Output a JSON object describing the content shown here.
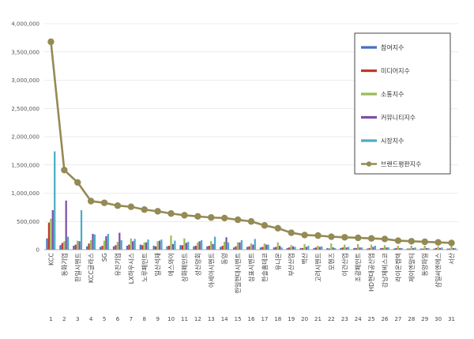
{
  "chart_data": {
    "type": "bar",
    "title": "",
    "xlabel": "",
    "ylabel": "",
    "ylim": [
      0,
      4000000
    ],
    "yticks": [
      "0",
      "500,000",
      "1,000,000",
      "1,500,000",
      "2,000,000",
      "2,500,000",
      "3,000,000",
      "3,500,000",
      "4,000,000"
    ],
    "ytick_values": [
      0,
      500000,
      1000000,
      1500000,
      2000000,
      2500000,
      3000000,
      3500000,
      4000000
    ],
    "grid": true,
    "legend_position": "top-right",
    "categories": [
      "KCC",
      "동화기업",
      "한일시멘트",
      "KCC글라스",
      "SG",
      "유진기업",
      "LX하우시스",
      "노루페인트",
      "일신석재",
      "에스와이",
      "삼화페인트",
      "성신양회",
      "아세아시멘트",
      "동양",
      "한일현대시멘트",
      "삼표시멘트",
      "한솔홈데코",
      "유니온",
      "부산산업",
      "백산",
      "고려시멘트",
      "모헨즈",
      "이건산업",
      "조광페인트",
      "HD현대공산업",
      "강남제비스코",
      "라이온켐텍",
      "제이엔알티",
      "동양파일",
      "삼일씨엔에스",
      "서산"
    ],
    "ranks": [
      "1",
      "2",
      "3",
      "4",
      "5",
      "6",
      "7",
      "8",
      "9",
      "10",
      "11",
      "12",
      "13",
      "14",
      "15",
      "16",
      "17",
      "18",
      "19",
      "20",
      "21",
      "22",
      "23",
      "24",
      "25",
      "26",
      "27",
      "28",
      "29",
      "30",
      "31"
    ],
    "series": [
      {
        "name": "참여지수",
        "kind": "bar",
        "color": "#4472c4",
        "values": [
          200000,
          80000,
          70000,
          60000,
          50000,
          60000,
          70000,
          90000,
          70000,
          60000,
          80000,
          60000,
          60000,
          50000,
          40000,
          50000,
          40000,
          40000,
          30000,
          30000,
          30000,
          30000,
          30000,
          30000,
          20000,
          30000,
          20000,
          20000,
          20000,
          20000,
          20000
        ]
      },
      {
        "name": "미디어지수",
        "kind": "bar",
        "color": "#c0392b",
        "values": [
          480000,
          120000,
          90000,
          110000,
          70000,
          80000,
          90000,
          80000,
          60000,
          70000,
          80000,
          70000,
          70000,
          70000,
          60000,
          60000,
          50000,
          50000,
          40000,
          30000,
          40000,
          20000,
          40000,
          30000,
          30000,
          30000,
          30000,
          20000,
          20000,
          30000,
          20000
        ]
      },
      {
        "name": "소통지수",
        "kind": "bar",
        "color": "#9bbb59",
        "values": [
          550000,
          150000,
          160000,
          170000,
          160000,
          140000,
          200000,
          130000,
          150000,
          250000,
          200000,
          130000,
          150000,
          140000,
          130000,
          110000,
          110000,
          130000,
          80000,
          100000,
          70000,
          110000,
          90000,
          100000,
          90000,
          80000,
          70000,
          70000,
          70000,
          60000,
          70000
        ]
      },
      {
        "name": "커뮤니티지수",
        "kind": "bar",
        "color": "#7952a8",
        "values": [
          700000,
          870000,
          150000,
          280000,
          240000,
          300000,
          150000,
          130000,
          160000,
          100000,
          120000,
          150000,
          100000,
          220000,
          130000,
          90000,
          90000,
          70000,
          60000,
          50000,
          50000,
          40000,
          40000,
          40000,
          50000,
          40000,
          30000,
          30000,
          30000,
          30000,
          30000
        ]
      },
      {
        "name": "시장지수",
        "kind": "bar",
        "color": "#4bacc6",
        "values": [
          1740000,
          230000,
          700000,
          270000,
          280000,
          170000,
          190000,
          180000,
          180000,
          160000,
          140000,
          170000,
          230000,
          130000,
          170000,
          190000,
          90000,
          40000,
          50000,
          70000,
          60000,
          30000,
          50000,
          40000,
          70000,
          40000,
          30000,
          40000,
          30000,
          40000,
          30000
        ]
      },
      {
        "name": "브랜드평판지수",
        "kind": "line",
        "color": "#948a54",
        "values": [
          3680000,
          1410000,
          1190000,
          860000,
          830000,
          780000,
          760000,
          710000,
          680000,
          640000,
          610000,
          590000,
          570000,
          560000,
          530000,
          500000,
          430000,
          380000,
          300000,
          260000,
          250000,
          230000,
          220000,
          210000,
          200000,
          190000,
          160000,
          150000,
          140000,
          130000,
          120000
        ]
      }
    ]
  }
}
